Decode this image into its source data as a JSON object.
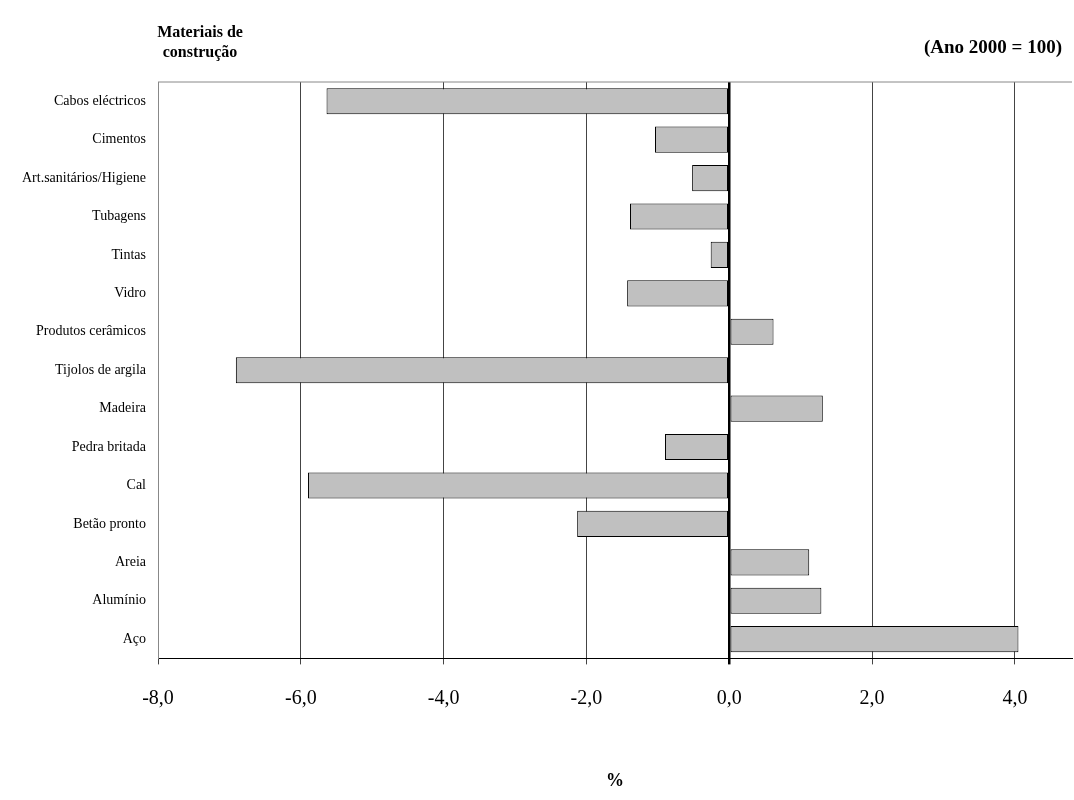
{
  "chart_data": {
    "type": "bar",
    "orientation": "horizontal",
    "ylabel": "Materiais de construção",
    "subtitle": "(Ano 2000 = 100)",
    "xlabel": "%",
    "categories": [
      "Cabos eléctricos",
      "Cimentos",
      "Art.sanitários/Higiene",
      "Tubagens",
      "Tintas",
      "Vidro",
      "Produtos cerâmicos",
      "Tijolos de argila",
      "Madeira",
      "Pedra britada",
      "Cal",
      "Betão pronto",
      "Areia",
      "Alumínio",
      "Aço"
    ],
    "values": [
      -5.64,
      -1.04,
      -0.52,
      -1.39,
      -0.26,
      -1.43,
      0.62,
      -6.91,
      1.31,
      -0.9,
      -5.9,
      -2.13,
      1.12,
      1.29,
      4.05
    ],
    "color": "#c0c0c0",
    "xlim": [
      -8,
      4.8
    ],
    "xticks": [
      {
        "value": -8,
        "label": "-8,0"
      },
      {
        "value": -6,
        "label": "-6,0"
      },
      {
        "value": -4,
        "label": "-4,0"
      },
      {
        "value": -2,
        "label": "-2,0"
      },
      {
        "value": 0,
        "label": "0,0"
      },
      {
        "value": 2,
        "label": "2,0"
      },
      {
        "value": 4,
        "label": "4,0"
      }
    ],
    "grid": "x",
    "legend": false
  }
}
